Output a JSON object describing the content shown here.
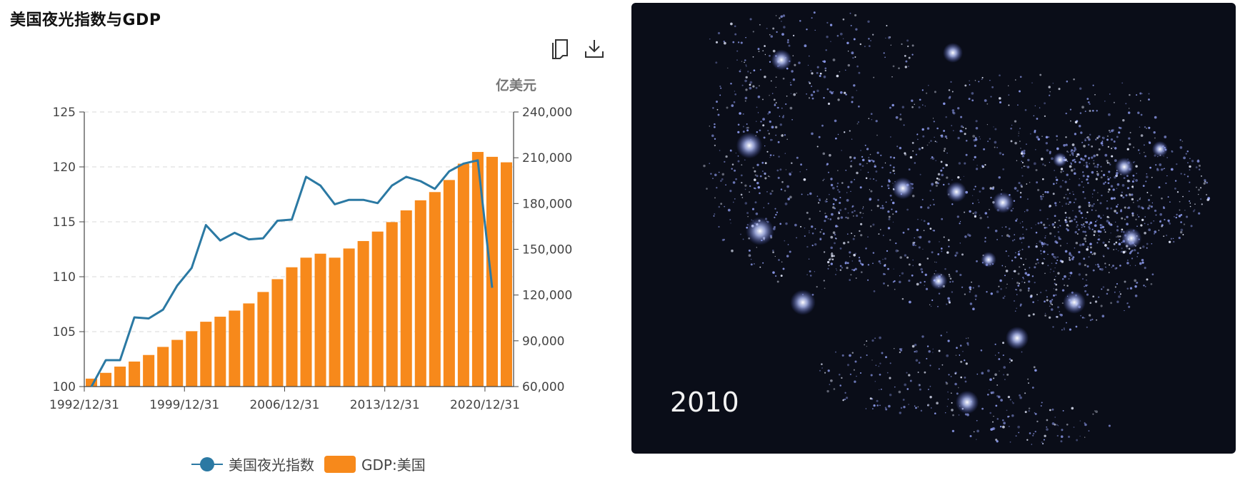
{
  "page": {
    "title": "美国夜光指数与GDP"
  },
  "toolbar": {
    "copy_icon": "copy-icon",
    "download_icon": "download-icon"
  },
  "chart_data": {
    "type": "bar+line",
    "title": "美国夜光指数与GDP",
    "y_left": {
      "min": 100,
      "max": 125,
      "ticks": [
        "100",
        "105",
        "110",
        "115",
        "120",
        "125"
      ]
    },
    "y_right": {
      "min": 60000,
      "max": 240000,
      "unit": "亿美元",
      "ticks": [
        "60,000",
        "90,000",
        "120,000",
        "150,000",
        "180,000",
        "210,000",
        "240,000"
      ]
    },
    "x_ticks": [
      "1992/12/31",
      "1999/12/31",
      "2006/12/31",
      "2013/12/31",
      "2020/12/31"
    ],
    "years": [
      1992,
      1993,
      1994,
      1995,
      1996,
      1997,
      1998,
      1999,
      2000,
      2001,
      2002,
      2003,
      2004,
      2005,
      2006,
      2007,
      2008,
      2009,
      2010,
      2011,
      2012,
      2013,
      2014,
      2015,
      2016,
      2017,
      2018,
      2019,
      2020,
      2021
    ],
    "series": [
      {
        "name": "美国夜光指数",
        "type": "line",
        "axis": "left",
        "color": "#2b79a3",
        "values": [
          100.0,
          102.4,
          102.4,
          106.3,
          106.2,
          107.0,
          109.2,
          110.8,
          114.7,
          113.3,
          114.0,
          113.4,
          113.5,
          115.1,
          115.2,
          119.1,
          118.3,
          116.6,
          117.0,
          117.0,
          116.7,
          118.3,
          119.1,
          118.7,
          118.0,
          119.6,
          120.3,
          120.6,
          109.0
        ]
      },
      {
        "name": "GDP:美国",
        "type": "bar",
        "axis": "right",
        "color": "#f7891b",
        "values": [
          65200,
          69000,
          73100,
          76400,
          80700,
          86000,
          90600,
          96300,
          102500,
          105800,
          109800,
          114500,
          122000,
          130400,
          138200,
          144500,
          147100,
          144500,
          150500,
          155400,
          161600,
          167800,
          175500,
          182100,
          187500,
          195400,
          206100,
          213800,
          210600,
          207000
        ]
      }
    ],
    "grid": "horizontal dashed",
    "legend_position": "bottom"
  },
  "legend": {
    "line_label": "美国夜光指数",
    "bar_label": "GDP:美国"
  },
  "map": {
    "year": "2010"
  }
}
